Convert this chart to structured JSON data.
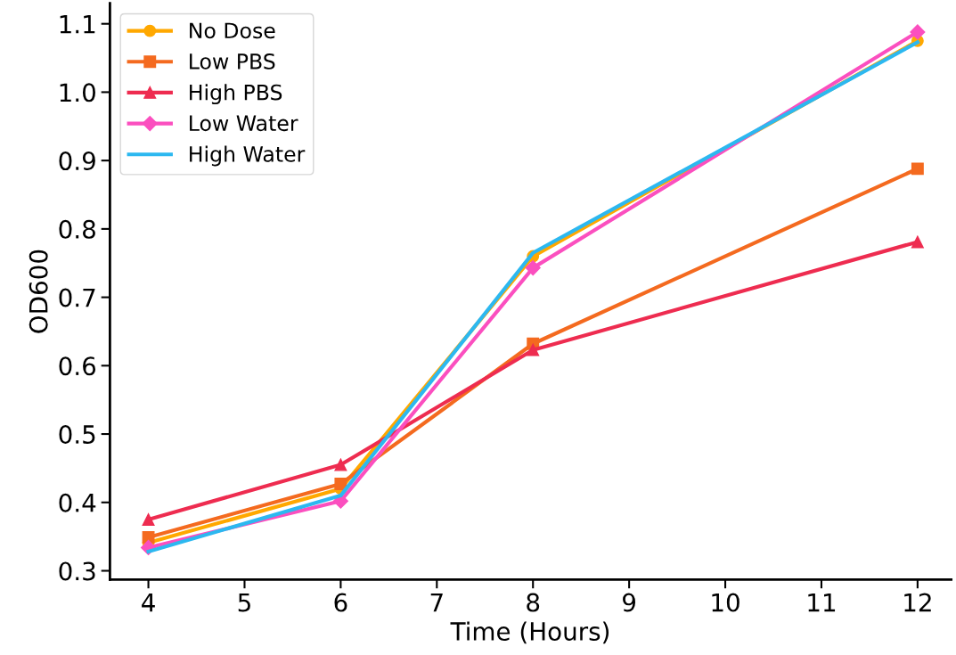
{
  "chart_data": {
    "type": "line",
    "xlabel": "Time (Hours)",
    "ylabel": "OD600",
    "x": [
      4,
      6,
      8,
      12
    ],
    "series": [
      {
        "name": "No Dose",
        "color": "#ffa800",
        "marker": "circle",
        "values": [
          0.341,
          0.42,
          0.76,
          1.075
        ]
      },
      {
        "name": "Low PBS",
        "color": "#f46a1f",
        "marker": "square",
        "values": [
          0.349,
          0.427,
          0.632,
          0.888
        ]
      },
      {
        "name": "High PBS",
        "color": "#ee2c50",
        "marker": "triangle",
        "values": [
          0.375,
          0.455,
          0.623,
          0.781
        ]
      },
      {
        "name": "Low Water",
        "color": "#fb4fbf",
        "marker": "diamond",
        "values": [
          0.334,
          0.402,
          0.743,
          1.088
        ]
      },
      {
        "name": "High Water",
        "color": "#2cb8f0",
        "marker": "none",
        "values": [
          0.328,
          0.41,
          0.765,
          1.073
        ]
      }
    ],
    "xlim": [
      3.6,
      12.35
    ],
    "ylim": [
      0.287,
      1.13
    ],
    "xticks": [
      4,
      5,
      6,
      7,
      8,
      9,
      10,
      11,
      12
    ],
    "yticks": [
      0.3,
      0.4,
      0.5,
      0.6,
      0.7,
      0.8,
      0.9,
      {
        "value": 1.0,
        "label": "1.0"
      },
      1.1
    ],
    "grid": false,
    "legend": "top left",
    "line_style": "solid"
  }
}
